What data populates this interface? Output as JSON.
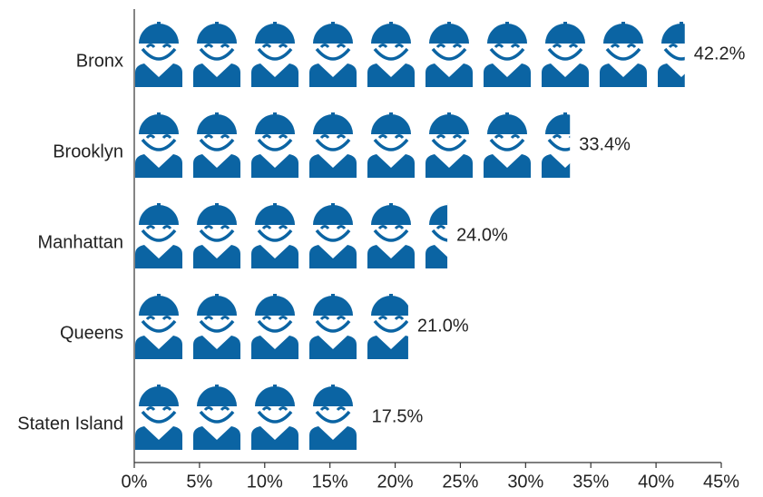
{
  "chart_data": {
    "type": "bar",
    "orientation": "horizontal",
    "categories": [
      "Bronx",
      "Brooklyn",
      "Manhattan",
      "Queens",
      "Staten Island"
    ],
    "values": [
      42.2,
      33.4,
      24.0,
      21.0,
      17.5
    ],
    "value_labels": [
      "42.2%",
      "33.4%",
      "24.0%",
      "21.0%",
      "17.5%"
    ],
    "color": "#0b64a3",
    "xlim": [
      0,
      45
    ],
    "xticks": [
      {
        "value": 0,
        "label": "0%"
      },
      {
        "value": 5,
        "label": "5%"
      },
      {
        "value": 10,
        "label": "10%"
      },
      {
        "value": 15,
        "label": "15%"
      },
      {
        "value": 20,
        "label": "20%"
      },
      {
        "value": 25,
        "label": "25%"
      },
      {
        "value": 30,
        "label": "30%"
      },
      {
        "value": 35,
        "label": "35%"
      },
      {
        "value": 40,
        "label": "40%"
      },
      {
        "value": 45,
        "label": "45%"
      }
    ]
  }
}
